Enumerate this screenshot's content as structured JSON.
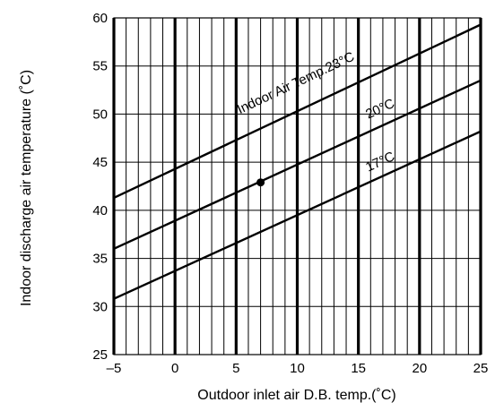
{
  "chart_data": {
    "type": "line",
    "title": "",
    "xlabel": "Outdoor inlet air D.B. temp.(˚C)",
    "ylabel": "Indoor discharge air temperature (˚C)",
    "xlim": [
      -5,
      25
    ],
    "ylim": [
      25,
      60
    ],
    "x_ticks": [
      "–5",
      "0",
      "5",
      "10",
      "15",
      "20",
      "25"
    ],
    "y_ticks": [
      "25",
      "30",
      "35",
      "40",
      "45",
      "50",
      "55",
      "60"
    ],
    "grid": true,
    "series": [
      {
        "name": "Indoor Air Temp.23°C",
        "x": [
          -5,
          25
        ],
        "y": [
          41.3,
          59.3
        ]
      },
      {
        "name": "20°C",
        "x": [
          -5,
          25
        ],
        "y": [
          36.0,
          53.5
        ]
      },
      {
        "name": "17°C",
        "x": [
          -5,
          25
        ],
        "y": [
          30.8,
          48.2
        ]
      }
    ],
    "annotations": [
      {
        "text": "Indoor Air Temp.23°C",
        "x": 5.3,
        "y": 50.0,
        "angle_series": 0
      },
      {
        "text": "20°C",
        "x": 15.8,
        "y": 49.5,
        "angle_series": 1
      },
      {
        "text": "17°C",
        "x": 15.8,
        "y": 44.0,
        "angle_series": 2
      }
    ],
    "marker": {
      "x": 7,
      "y": 42.9
    }
  }
}
